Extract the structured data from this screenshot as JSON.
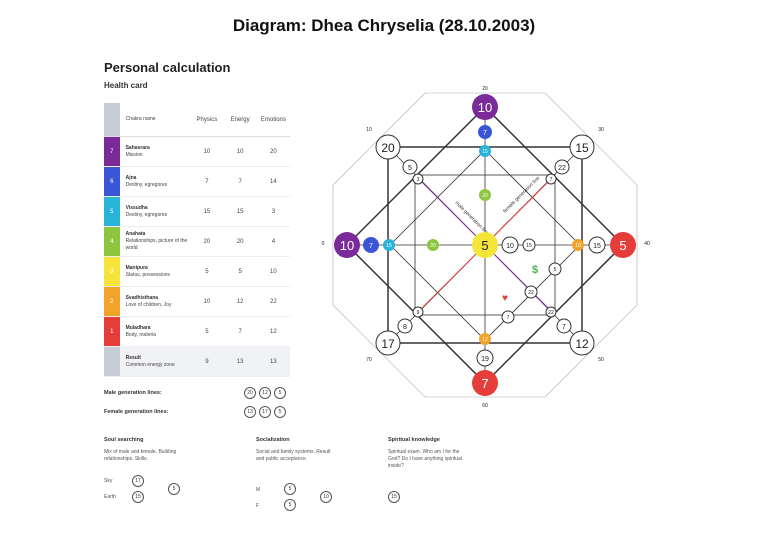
{
  "title": "Diagram: Dhea Chryselia (28.10.2003)",
  "panel": {
    "heading": "Personal calculation",
    "subheading": "Health card"
  },
  "table": {
    "headers": [
      "Chakra name",
      "Physics",
      "Energy",
      "Emotions"
    ],
    "rows": [
      {
        "n": "7",
        "name": "Sahasrara",
        "desc": "Mission",
        "physics": "10",
        "energy": "10",
        "emotions": "20",
        "color": "#7b2a9a"
      },
      {
        "n": "6",
        "name": "Ajna",
        "desc": "Destiny, egregores",
        "physics": "7",
        "energy": "7",
        "emotions": "14",
        "color": "#3a56d6"
      },
      {
        "n": "5",
        "name": "Vissudha",
        "desc": "Destiny, egregores",
        "physics": "15",
        "energy": "15",
        "emotions": "3",
        "color": "#28b4d8"
      },
      {
        "n": "4",
        "name": "Anahata",
        "desc": "Relationships, picture of the world",
        "physics": "20",
        "energy": "20",
        "emotions": "4",
        "color": "#8cc63e"
      },
      {
        "n": "3",
        "name": "Manipura",
        "desc": "Status, possessions",
        "physics": "5",
        "energy": "5",
        "emotions": "10",
        "color": "#f5e43a"
      },
      {
        "n": "2",
        "name": "Svadhisthana",
        "desc": "Love of children, Joy",
        "physics": "10",
        "energy": "12",
        "emotions": "22",
        "color": "#f3a22a"
      },
      {
        "n": "1",
        "name": "Muladhara",
        "desc": "Body, materia",
        "physics": "5",
        "energy": "7",
        "emotions": "12",
        "color": "#e43d3a"
      },
      {
        "n": "",
        "name": "Result",
        "desc": "Common energy zone",
        "physics": "9",
        "energy": "13",
        "emotions": "13",
        "color": "#c8ccd6"
      }
    ]
  },
  "generation": {
    "male_label": "Male generation lines:",
    "male": [
      "20",
      "12",
      "5"
    ],
    "female_label": "Female generation lines:",
    "female": [
      "13",
      "17",
      "5"
    ]
  },
  "soul": {
    "title": "Soul searching",
    "desc": "Mix of male and female. Building relationships. Skills.",
    "sky_label": "Sky",
    "sky": "17",
    "earth_label": "Earth",
    "earth": "15",
    "result": "5"
  },
  "social": {
    "title": "Socialization",
    "desc": "Social and family systems. Result and public acceptance.",
    "m_label": "M",
    "m": "5",
    "f_label": "F",
    "f": "5",
    "result": "10"
  },
  "spiritual": {
    "title": "Spiritual knowledge",
    "desc": "Spiritual exam. Who am I for the God? Do I have anything spiritual inside?",
    "value": "15"
  },
  "diagram": {
    "center": "5",
    "top": "10",
    "right": "5",
    "bottom": "7",
    "left": "10",
    "top_left": "20",
    "top_right": "15",
    "bottom_right": "12",
    "bottom_left": "17",
    "top_inner": "7",
    "top_inner2": "15",
    "center_up": "20",
    "left_inner": "7",
    "left_inner2": "15",
    "center_left": "20",
    "right_inner": "15",
    "right_inner2": "10",
    "bottom_inner": "12",
    "bottom_inner2": "19",
    "tl_inner": "5",
    "tl_inner2": "3",
    "tr_inner": "22",
    "tr_inner2": "7",
    "bl_inner": "8",
    "bl_inner2": "9",
    "br_inner": "7",
    "br_inner2": "22",
    "c_right1": "10",
    "c_right2": "15",
    "love_a": "22",
    "love_b": "7",
    "money_a": "5",
    "male_line": "male generation line",
    "female_line": "female generation line",
    "deg_top": "20",
    "deg_right": "40",
    "deg_bottom": "60",
    "deg_left": "0",
    "deg_tl": "10",
    "deg_tr": "30",
    "deg_br": "50",
    "deg_bl": "70"
  },
  "colors": {
    "violet": "#7b2a9a",
    "blue": "#3a56d6",
    "cyan": "#28b4d8",
    "green": "#8cc63e",
    "yellow": "#f5e43a",
    "orange": "#f3a22a",
    "red": "#e43d3a"
  }
}
